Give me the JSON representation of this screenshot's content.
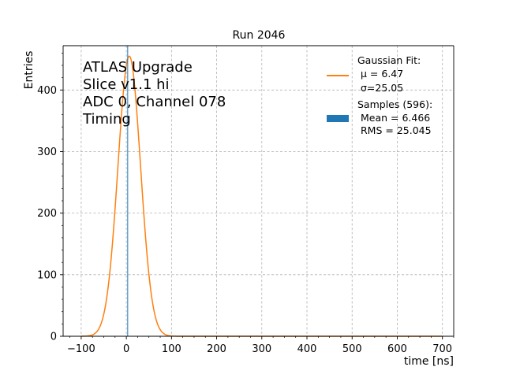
{
  "chart_data": {
    "type": "line",
    "title": "Run 2046",
    "xlabel": "time [ns]",
    "ylabel": "Entries",
    "xlim": [
      -140,
      725
    ],
    "ylim": [
      0,
      472
    ],
    "xticks": [
      -100,
      0,
      100,
      200,
      300,
      400,
      500,
      600,
      700
    ],
    "yticks": [
      0,
      100,
      200,
      300,
      400
    ],
    "grid": true,
    "legend_position": "top-right",
    "annotation_lines": [
      "ATLAS Upgrade",
      "Slice v1.1 hi",
      "ADC 0, Channel 078",
      "Timing"
    ],
    "fit": {
      "name_lines": [
        "Gaussian Fit:",
        "μ = 6.47",
        "σ=25.05"
      ],
      "mu": 6.47,
      "sigma": 25.05,
      "amplitude": 455,
      "x_range": [
        -100,
        700
      ],
      "color": "#ff7f0e"
    },
    "samples": {
      "name_lines": [
        "Samples (596):",
        "Mean = 6.466",
        "RMS = 25.045"
      ],
      "color": "#1f77b4",
      "marker_x": 3
    }
  }
}
